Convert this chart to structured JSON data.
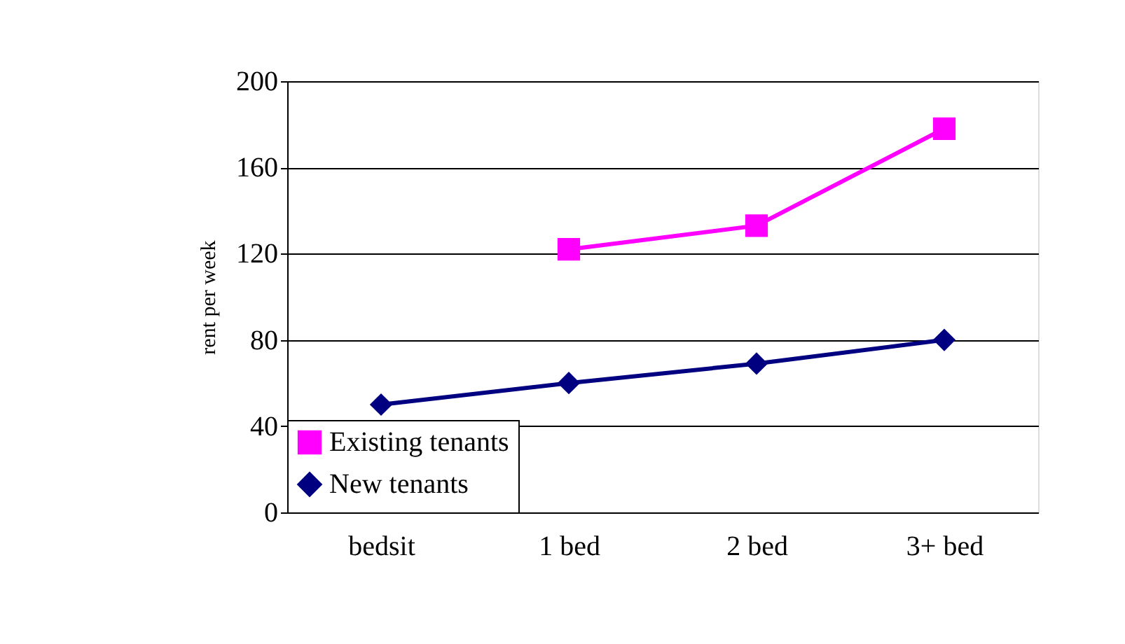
{
  "chart_data": {
    "type": "line",
    "ylabel": "rent per week",
    "categories": [
      "bedsit",
      "1 bed",
      "2 bed",
      "3+ bed"
    ],
    "series": [
      {
        "name": "Existing tenants",
        "color": "#ff00ff",
        "marker": "square",
        "values": [
          null,
          122,
          133,
          178
        ]
      },
      {
        "name": "New tenants",
        "color": "#000080",
        "marker": "diamond",
        "values": [
          50,
          60,
          69,
          80
        ]
      }
    ],
    "ylim": [
      0,
      200
    ],
    "yticks": [
      0,
      40,
      80,
      120,
      160,
      200
    ],
    "grid": "y",
    "legend": "bottom left"
  }
}
